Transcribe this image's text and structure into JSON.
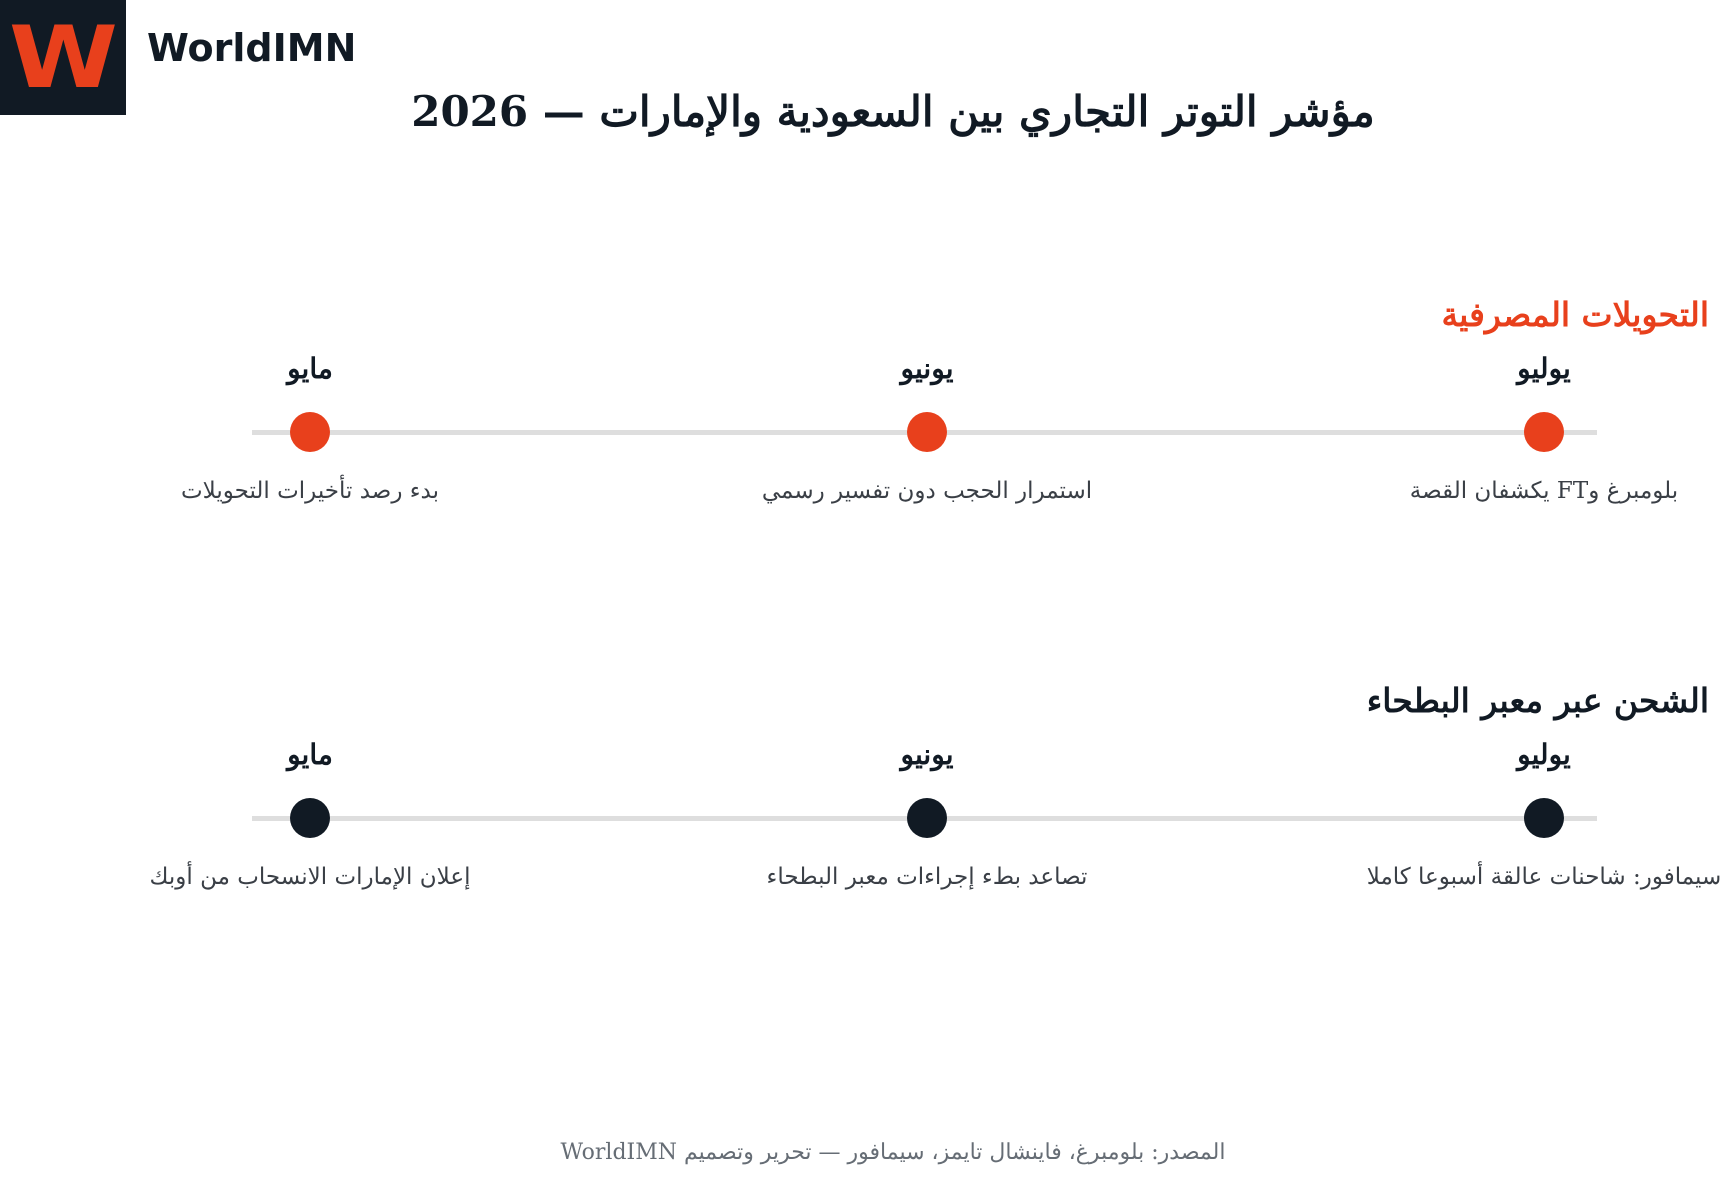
{
  "brand": {
    "logo_letter": "W",
    "name": "WorldIMN"
  },
  "title": "مؤشر التوتر التجاري بين السعودية والإمارات — 2026",
  "colors": {
    "accent": "#e8401c",
    "dark": "#111a24",
    "track": "#dedede",
    "muted": "#666d75"
  },
  "sections": [
    {
      "title": "التحويلات المصرفية",
      "title_color": "#e8401c",
      "dot_color": "#e8401c",
      "events": [
        {
          "month": "يوليو",
          "text": "بلومبرغ وFT يكشفان القصة"
        },
        {
          "month": "يونيو",
          "text": "استمرار الحجب دون تفسير رسمي"
        },
        {
          "month": "مايو",
          "text": "بدء رصد تأخيرات التحويلات"
        }
      ]
    },
    {
      "title": "الشحن عبر معبر البطحاء",
      "title_color": "#111a24",
      "dot_color": "#111a24",
      "events": [
        {
          "month": "يوليو",
          "text": "سيمافور: شاحنات عالقة أسبوعا كاملا"
        },
        {
          "month": "يونيو",
          "text": "تصاعد بطء إجراءات معبر البطحاء"
        },
        {
          "month": "مايو",
          "text": "إعلان الإمارات الانسحاب من أوبك"
        }
      ]
    }
  ],
  "footer": "المصدر: بلومبرغ، فاينشال تايمز، سيمافور — تحرير وتصميم WorldIMN"
}
